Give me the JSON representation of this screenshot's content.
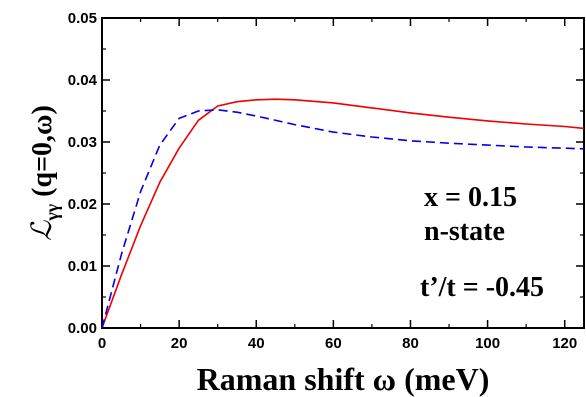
{
  "chart_data": {
    "type": "line",
    "xlabel": "Raman shift ω (meV)",
    "ylabel_prefix": "ℒ",
    "ylabel_sub": "γγ",
    "ylabel_suffix": " (q=0,ω)",
    "xlim": [
      0,
      125
    ],
    "ylim": [
      0,
      0.05
    ],
    "x_ticks": [
      "0",
      "20",
      "40",
      "60",
      "80",
      "100",
      "120"
    ],
    "y_ticks": [
      "0.00",
      "0.01",
      "0.02",
      "0.03",
      "0.04",
      "0.05"
    ],
    "annotations": [
      "x = 0.15",
      "n-state",
      "t’/t = -0.45"
    ],
    "series": [
      {
        "color": "#ee0000",
        "dash": "solid",
        "x": [
          0,
          5,
          10,
          15,
          20,
          25,
          30,
          35,
          40,
          45,
          50,
          60,
          70,
          80,
          90,
          100,
          110,
          120,
          125
        ],
        "y": [
          0.0,
          0.0085,
          0.0165,
          0.0235,
          0.029,
          0.0335,
          0.0358,
          0.0365,
          0.0368,
          0.0369,
          0.0368,
          0.0363,
          0.0355,
          0.0347,
          0.034,
          0.0334,
          0.0329,
          0.0325,
          0.0322
        ]
      },
      {
        "color": "#0000ee",
        "dash": "dashed",
        "x": [
          0,
          5,
          10,
          15,
          20,
          25,
          30,
          35,
          40,
          50,
          60,
          70,
          80,
          90,
          100,
          110,
          120,
          125
        ],
        "y": [
          0.0,
          0.0118,
          0.022,
          0.0295,
          0.0338,
          0.035,
          0.0352,
          0.0348,
          0.0342,
          0.0328,
          0.0316,
          0.0308,
          0.0302,
          0.0298,
          0.0295,
          0.0292,
          0.029,
          0.0289
        ]
      }
    ]
  }
}
